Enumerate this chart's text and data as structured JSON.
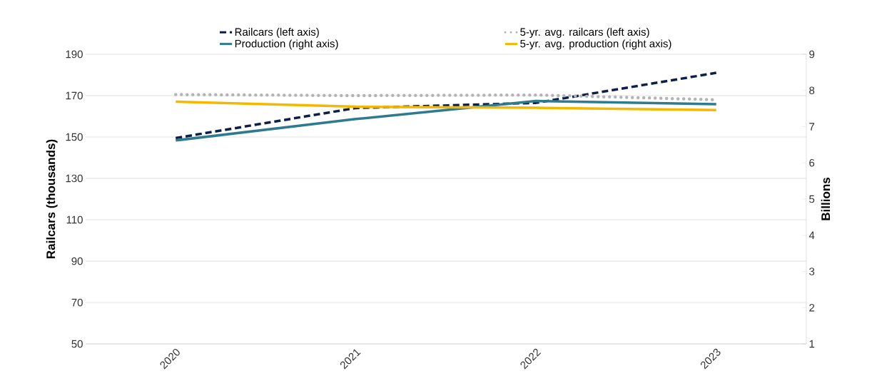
{
  "chart_data": {
    "type": "line",
    "ylabel": "Railcars (thousands)",
    "y2label": "Billions",
    "categories": [
      "2020",
      "2021",
      "2022",
      "2023"
    ],
    "series": [
      {
        "name": "Railcars (left axis)",
        "color": "#0d1f45",
        "line_style": "dashed",
        "values": [
          149.5,
          164,
          166.5,
          181
        ]
      },
      {
        "name": "5-yr. avg. railcars (left axis)",
        "color": "#b4b4b8",
        "line_style": "dotted",
        "values": [
          170.5,
          170,
          170.3,
          168
        ]
      },
      {
        "name": "Production (right axis)",
        "color": "#2e7a8f",
        "line_style": "solid",
        "axis": "y2",
        "values": [
          6.62,
          7.21,
          7.71,
          7.62
        ]
      },
      {
        "name": "5-yr. avg. production (right axis)",
        "color": "#f5b800",
        "line_style": "solid",
        "axis": "y2",
        "values": [
          7.69,
          7.55,
          7.52,
          7.46
        ]
      }
    ],
    "ylim": [
      50,
      190
    ],
    "yticks": [
      50,
      70,
      90,
      110,
      130,
      150,
      170,
      190
    ],
    "y2lim": [
      1,
      9
    ],
    "y2ticks": [
      1,
      2,
      3,
      4,
      5,
      6,
      7,
      8,
      9
    ],
    "grid": "y",
    "legend": "top"
  }
}
